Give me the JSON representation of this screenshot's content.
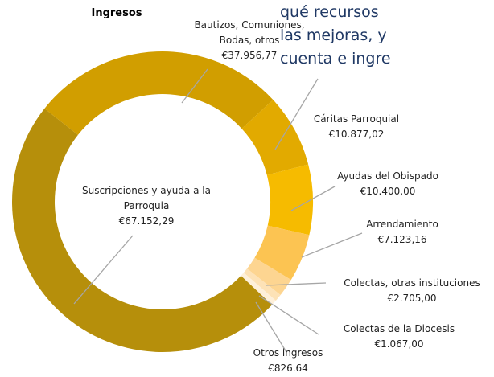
{
  "document_text": [
    "qué recursos",
    "las mejoras, y",
    "cuenta e ingre"
  ],
  "chart_data": {
    "type": "donut",
    "title": "Ingresos",
    "categories": [
      "Suscripciones y ayuda a la Parroquia",
      "Bautizos, Comuniones, Bodas, otros",
      "Cáritas Parroquial",
      "Ayudas del Obispado",
      "Arrendamiento",
      "Colectas, otras instituciones",
      "Colectas de la Diocesis",
      "Otros ingresos"
    ],
    "values": [
      67152.29,
      37956.77,
      10877.02,
      10400.0,
      7123.16,
      2705.0,
      1067.0,
      826.64
    ],
    "value_labels": [
      "€67.152,29",
      "€37.956,77",
      "€10.877,02",
      "€10.400,00",
      "€7.123,16",
      "€2.705,00",
      "€1.067,00",
      "€826.64"
    ],
    "colors": [
      "#b68f0b",
      "#d19e00",
      "#e2aa00",
      "#f6bb00",
      "#fcc452",
      "#fdd591",
      "#fde2b6",
      "#fef0da"
    ]
  }
}
